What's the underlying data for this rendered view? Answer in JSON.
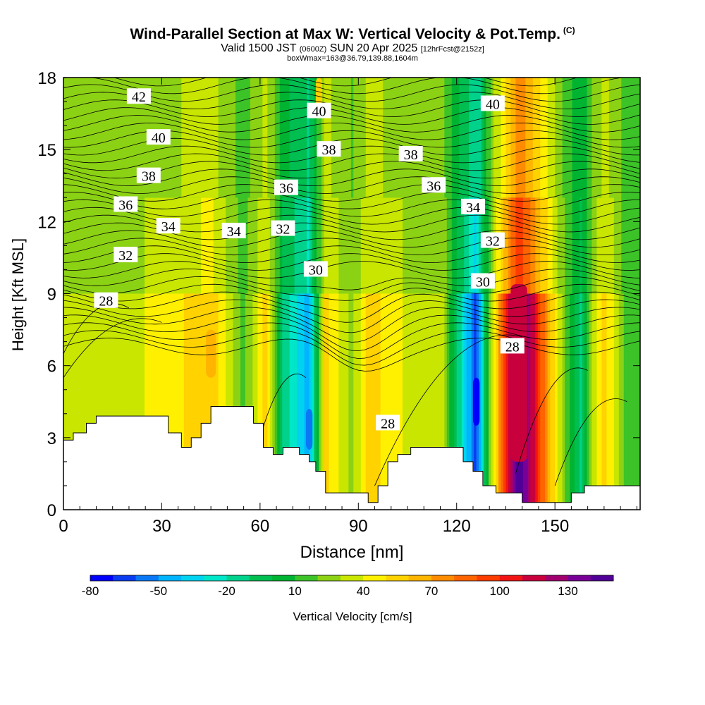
{
  "title": {
    "main": "Wind-Parallel Section at Max W: Vertical Velocity & Pot.Temp.",
    "copyright": "(C)",
    "valid_prefix": "Valid 1500 JST",
    "valid_utc": "(0600Z)",
    "valid_date": "SUN 20 Apr 2025",
    "forecast": "[12hrFcst@2152z]",
    "box_info": "boxWmax=163@36.79,139.88,1604m"
  },
  "colorbar": {
    "title": "Vertical Velocity [cm/s]",
    "labels": [
      "-80",
      "-50",
      "-20",
      "10",
      "40",
      "70",
      "100",
      "130"
    ],
    "colors": [
      "#0000ff",
      "#0a3cf0",
      "#0a78f5",
      "#00b4ff",
      "#00d2f0",
      "#00e6c8",
      "#00d28c",
      "#00be50",
      "#00b432",
      "#3cc328",
      "#8cd214",
      "#c8e600",
      "#fff000",
      "#ffd200",
      "#ffb400",
      "#ff8c00",
      "#ff6400",
      "#ff3c00",
      "#f01414",
      "#c8003c",
      "#a0006e",
      "#780096",
      "#500096"
    ]
  },
  "chart_data": {
    "type": "heatmap",
    "xlabel": "Distance [nm]",
    "ylabel": "Height [Kft MSL]",
    "xlim": [
      0,
      176
    ],
    "ylim": [
      0,
      18
    ],
    "xticks": [
      0,
      30,
      60,
      90,
      120,
      150
    ],
    "yticks": [
      0,
      3,
      6,
      9,
      12,
      15,
      18
    ],
    "field": "Vertical Velocity [cm/s]",
    "contour_field": "Potential Temperature",
    "contour_levels": [
      28,
      30,
      32,
      34,
      36,
      38,
      40,
      42
    ],
    "vertical_velocity_columns": [
      {
        "x": 12,
        "value": 25
      },
      {
        "x": 25,
        "value": 30
      },
      {
        "x": 33,
        "value": 35
      },
      {
        "x": 45,
        "value": 50
      },
      {
        "x": 55,
        "value": 5
      },
      {
        "x": 62,
        "value": 45
      },
      {
        "x": 67,
        "value": -20
      },
      {
        "x": 75,
        "value": -55
      },
      {
        "x": 80,
        "value": 45
      },
      {
        "x": 88,
        "value": 15
      },
      {
        "x": 93,
        "value": 45
      },
      {
        "x": 107,
        "value": 25
      },
      {
        "x": 116,
        "value": 20
      },
      {
        "x": 126,
        "value": -75
      },
      {
        "x": 131,
        "value": 30
      },
      {
        "x": 139,
        "value": 145
      },
      {
        "x": 153,
        "value": 10
      },
      {
        "x": 158,
        "value": -25
      },
      {
        "x": 162,
        "value": 25
      },
      {
        "x": 165,
        "value": 45
      },
      {
        "x": 172,
        "value": 5
      }
    ],
    "terrain": [
      [
        0,
        2.9
      ],
      [
        3,
        3.2
      ],
      [
        7,
        3.6
      ],
      [
        10,
        3.9
      ],
      [
        29,
        3.9
      ],
      [
        32,
        3.2
      ],
      [
        36,
        2.6
      ],
      [
        39,
        3.0
      ],
      [
        42,
        3.6
      ],
      [
        45,
        4.3
      ],
      [
        55,
        4.3
      ],
      [
        58,
        3.6
      ],
      [
        61,
        2.6
      ],
      [
        64,
        2.3
      ],
      [
        67,
        2.6
      ],
      [
        72,
        2.3
      ],
      [
        75,
        2.0
      ],
      [
        77,
        1.6
      ],
      [
        80,
        0.7
      ],
      [
        90,
        0.7
      ],
      [
        93,
        0.3
      ],
      [
        96,
        1.0
      ],
      [
        99,
        2.0
      ],
      [
        102,
        2.3
      ],
      [
        106,
        2.6
      ],
      [
        119,
        2.6
      ],
      [
        122,
        2.0
      ],
      [
        125,
        1.6
      ],
      [
        128,
        1.0
      ],
      [
        132,
        0.7
      ],
      [
        136,
        0.7
      ],
      [
        140,
        0.3
      ],
      [
        151,
        0.3
      ],
      [
        155,
        0.7
      ],
      [
        159,
        1.0
      ],
      [
        176,
        1.0
      ]
    ],
    "contour_labels": [
      {
        "text": "42",
        "x": 23,
        "y": 17.2
      },
      {
        "text": "40",
        "x": 29,
        "y": 15.5
      },
      {
        "text": "40",
        "x": 78,
        "y": 16.6
      },
      {
        "text": "40",
        "x": 131,
        "y": 16.9
      },
      {
        "text": "38",
        "x": 26,
        "y": 13.9
      },
      {
        "text": "38",
        "x": 81,
        "y": 15.0
      },
      {
        "text": "38",
        "x": 106,
        "y": 14.8
      },
      {
        "text": "36",
        "x": 19,
        "y": 12.7
      },
      {
        "text": "36",
        "x": 68,
        "y": 13.4
      },
      {
        "text": "36",
        "x": 113,
        "y": 13.5
      },
      {
        "text": "34",
        "x": 32,
        "y": 11.8
      },
      {
        "text": "34",
        "x": 52,
        "y": 11.6
      },
      {
        "text": "34",
        "x": 125,
        "y": 12.6
      },
      {
        "text": "32",
        "x": 19,
        "y": 10.6
      },
      {
        "text": "32",
        "x": 67,
        "y": 11.7
      },
      {
        "text": "32",
        "x": 131,
        "y": 11.2
      },
      {
        "text": "30",
        "x": 77,
        "y": 10.0
      },
      {
        "text": "30",
        "x": 128,
        "y": 9.5
      },
      {
        "text": "28",
        "x": 13,
        "y": 8.7
      },
      {
        "text": "28",
        "x": 99,
        "y": 3.6
      },
      {
        "text": "28",
        "x": 137,
        "y": 6.8
      }
    ]
  }
}
